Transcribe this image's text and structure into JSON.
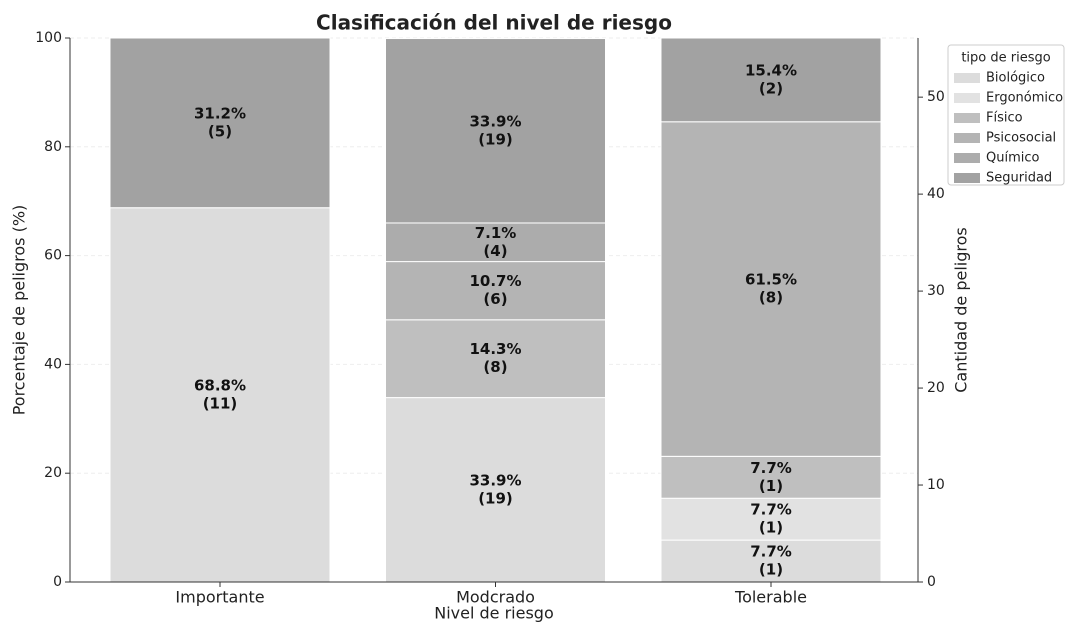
{
  "chart_data": {
    "type": "stacked_bar",
    "title": "Clasificación del nivel de riesgo",
    "xlabel": "Nivel de riesgo",
    "ylabel": "Porcentaje de peligros (%)",
    "y2label": "Cantidad de peligros",
    "legend_title": "tipo de riesgo",
    "legend": "upper right",
    "categories": [
      "Importante",
      "Modcrado",
      "Tolerable"
    ],
    "series": [
      {
        "name": "Biológico",
        "color": "#dcdcdc",
        "values": [
          68.8,
          33.9,
          7.7
        ],
        "value_labels": [
          "68.8%",
          "33.9%",
          "7.7%"
        ],
        "count_labels": [
          "(11)",
          "(19)",
          "(1)"
        ]
      },
      {
        "name": "Ergonómico",
        "color": "#e2e2e2",
        "values": [
          0,
          0,
          7.7
        ],
        "value_labels": [
          null,
          null,
          "7.7%"
        ],
        "count_labels": [
          null,
          null,
          "(1)"
        ]
      },
      {
        "name": "Físico",
        "color": "#bfbfbf",
        "values": [
          0,
          14.3,
          7.7
        ],
        "value_labels": [
          null,
          "14.3%",
          "7.7%"
        ],
        "count_labels": [
          null,
          "(8)",
          "(1)"
        ]
      },
      {
        "name": "Psicosocial",
        "color": "#b4b4b4",
        "values": [
          0,
          10.7,
          61.5
        ],
        "value_labels": [
          null,
          "10.7%",
          "61.5%"
        ],
        "count_labels": [
          null,
          "(6)",
          "(8)"
        ]
      },
      {
        "name": "Químico",
        "color": "#acacac",
        "values": [
          0,
          7.1,
          0
        ],
        "value_labels": [
          null,
          "7.1%",
          null
        ],
        "count_labels": [
          null,
          "(4)",
          null
        ]
      },
      {
        "name": "Seguridad",
        "color": "#a2a2a2",
        "values": [
          31.2,
          33.9,
          15.4
        ],
        "value_labels": [
          "31.2%",
          "33.9%",
          "15.4%"
        ],
        "count_labels": [
          "(5)",
          "(19)",
          "(2)"
        ]
      }
    ],
    "ylim": [
      0,
      100
    ],
    "yticks": [
      0,
      20,
      40,
      60,
      80,
      100
    ],
    "y2lim": [
      0,
      56.1
    ],
    "y2ticks": [
      0,
      10,
      20,
      30,
      40,
      50
    ],
    "grid": true
  }
}
